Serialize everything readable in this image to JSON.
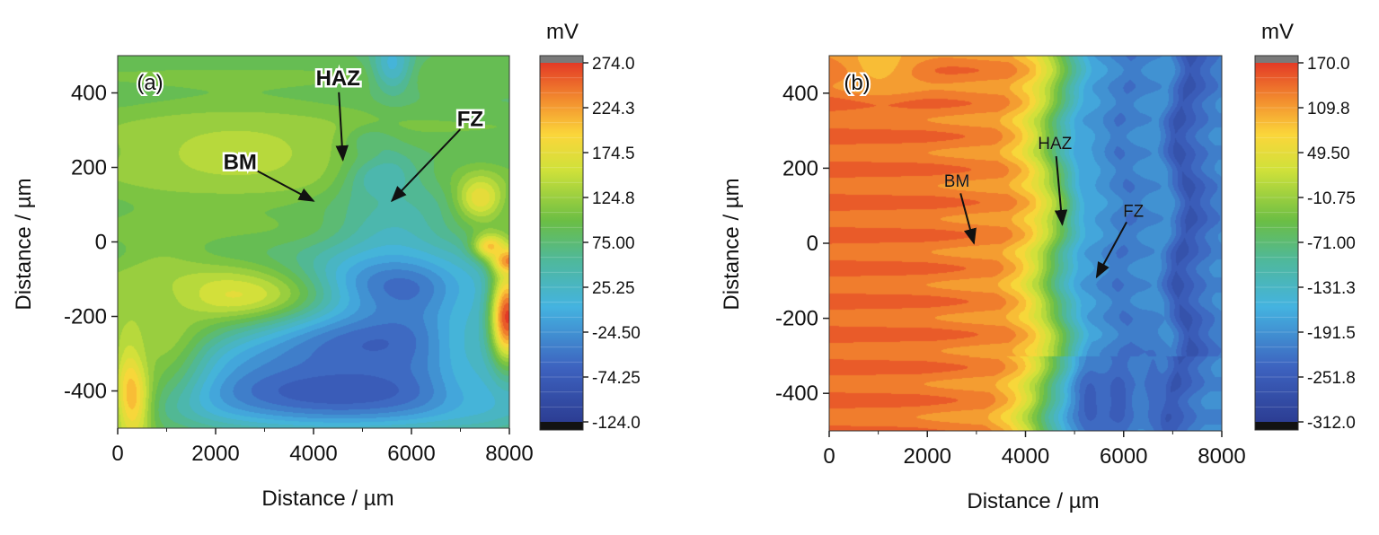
{
  "chart_data": [
    {
      "type": "heatmap",
      "panel_label": "(a)",
      "xlabel": "Distance / µm",
      "ylabel": "Distance / µm",
      "xlim": [
        0,
        8000
      ],
      "ylim": [
        -500,
        500
      ],
      "x_ticks": [
        0,
        2000,
        4000,
        6000,
        8000
      ],
      "y_ticks": [
        -400,
        -200,
        0,
        200,
        400
      ],
      "colorbar": {
        "unit": "mV",
        "range": [
          -124.0,
          274.0
        ],
        "tick_labels": [
          "274.0",
          "224.3",
          "174.5",
          "124.8",
          "75.00",
          "25.25",
          "-24.50",
          "-74.25",
          "-124.0"
        ]
      },
      "background_value": 90,
      "features": [
        {
          "x": 5300,
          "y": 180,
          "sx": 500,
          "sy": 50,
          "value": -70
        },
        {
          "x": 5100,
          "y": 260,
          "sx": 350,
          "sy": 30,
          "value": 0
        },
        {
          "x": 5600,
          "y": 480,
          "sx": 300,
          "sy": 60,
          "value": 10
        },
        {
          "x": 5600,
          "y": 20,
          "sx": 900,
          "sy": 130,
          "value": 30
        },
        {
          "x": 5400,
          "y": -130,
          "sx": 1400,
          "sy": 60,
          "value": -90
        },
        {
          "x": 5200,
          "y": -260,
          "sx": 2200,
          "sy": 100,
          "value": -70
        },
        {
          "x": 4500,
          "y": -400,
          "sx": 2600,
          "sy": 70,
          "value": -80
        },
        {
          "x": 7300,
          "y": -270,
          "sx": 600,
          "sy": 150,
          "value": 20
        },
        {
          "x": 2200,
          "y": -140,
          "sx": 1600,
          "sy": 60,
          "value": 170
        },
        {
          "x": 2400,
          "y": 240,
          "sx": 2300,
          "sy": 100,
          "value": 140
        },
        {
          "x": 300,
          "y": -390,
          "sx": 280,
          "sy": 110,
          "value": 240
        },
        {
          "x": 900,
          "y": -200,
          "sx": 600,
          "sy": 160,
          "value": 130
        },
        {
          "x": 7950,
          "y": -200,
          "sx": 250,
          "sy": 90,
          "value": 270
        },
        {
          "x": 7400,
          "y": 120,
          "sx": 350,
          "sy": 45,
          "value": 180
        },
        {
          "x": 7600,
          "y": -10,
          "sx": 250,
          "sy": 25,
          "value": 200
        },
        {
          "x": 8000,
          "y": -50,
          "sx": 250,
          "sy": 25,
          "value": 240
        }
      ],
      "annotations": [
        {
          "text": "BM",
          "label_x": 2500,
          "label_y": 215,
          "arrow_to": [
            4000,
            110
          ]
        },
        {
          "text": "HAZ",
          "label_x": 4500,
          "label_y": 440,
          "arrow_to": [
            4600,
            220
          ]
        },
        {
          "text": "FZ",
          "label_x": 7200,
          "label_y": 330,
          "arrow_to": [
            5600,
            110
          ]
        }
      ]
    },
    {
      "type": "heatmap",
      "panel_label": "(b)",
      "xlabel": "Distance / µm",
      "ylabel": "Distance / µm",
      "xlim": [
        0,
        8000
      ],
      "ylim": [
        -500,
        500
      ],
      "x_ticks": [
        0,
        2000,
        4000,
        6000,
        8000
      ],
      "y_ticks": [
        -400,
        -200,
        0,
        200,
        400
      ],
      "colorbar": {
        "unit": "mV",
        "range": [
          -312.0,
          170.0
        ],
        "tick_labels": [
          "170.0",
          "109.8",
          "49.50",
          "-10.75",
          "-71.00",
          "-131.3",
          "-191.5",
          "-251.8",
          "-312.0"
        ]
      },
      "x_profile": [
        [
          0,
          140
        ],
        [
          2000,
          135
        ],
        [
          3500,
          120
        ],
        [
          4000,
          80
        ],
        [
          4400,
          10
        ],
        [
          4800,
          -90
        ],
        [
          5200,
          -170
        ],
        [
          5600,
          -195
        ],
        [
          6000,
          -220
        ],
        [
          6400,
          -200
        ],
        [
          6800,
          -190
        ],
        [
          7200,
          -270
        ],
        [
          7600,
          -230
        ],
        [
          8000,
          -200
        ]
      ],
      "features": [
        {
          "x": 5300,
          "y": -420,
          "sx": 220,
          "sy": 80,
          "value": -250
        },
        {
          "x": 5900,
          "y": -420,
          "sx": 220,
          "sy": 80,
          "value": -250
        },
        {
          "x": 6600,
          "y": -380,
          "sx": 200,
          "sy": 100,
          "value": -230
        },
        {
          "x": 5300,
          "y": 200,
          "sx": 200,
          "sy": 120,
          "value": -180
        },
        {
          "x": 1000,
          "y": 480,
          "sx": 600,
          "sy": 60,
          "value": 90
        }
      ],
      "annotations": [
        {
          "text": "BM",
          "label_x": 2600,
          "label_y": 170,
          "arrow_to": [
            2950,
            0
          ]
        },
        {
          "text": "HAZ",
          "label_x": 4600,
          "label_y": 270,
          "arrow_to": [
            4750,
            50
          ]
        },
        {
          "text": "FZ",
          "label_x": 6200,
          "label_y": 90,
          "arrow_to": [
            5450,
            -90
          ]
        }
      ]
    }
  ]
}
